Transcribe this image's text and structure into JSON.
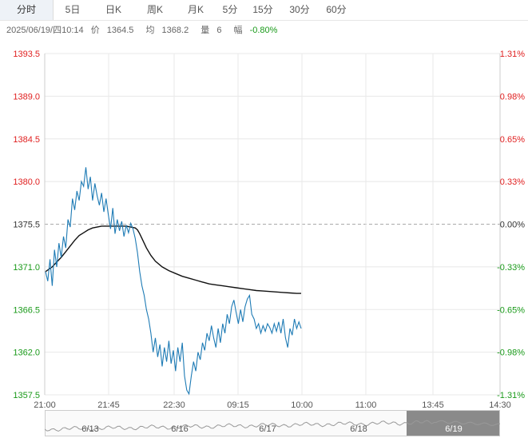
{
  "tabs": [
    {
      "label": "分时",
      "active": true
    },
    {
      "label": "5日",
      "active": false
    },
    {
      "label": "日K",
      "active": false
    },
    {
      "label": "周K",
      "active": false
    },
    {
      "label": "月K",
      "active": false
    },
    {
      "label": "5分",
      "active": false
    },
    {
      "label": "15分",
      "active": false
    },
    {
      "label": "30分",
      "active": false
    },
    {
      "label": "60分",
      "active": false
    }
  ],
  "info": {
    "datetime": "2025/06/19/四10:14",
    "price_label": "价",
    "price": "1364.5",
    "avg_label": "均",
    "avg": "1368.2",
    "vol_label": "量",
    "vol": "6",
    "change_label": "幅",
    "change": "-0.80%"
  },
  "colors": {
    "up": "#e02020",
    "down": "#1a9a1a",
    "neutral": "#333333",
    "price_line": "#1e7bb5",
    "avg_line": "#111111",
    "grid": "#e8e8e8",
    "baseline": "#aaaaaa",
    "highlight": "#8a8a8a"
  },
  "chart_data": {
    "type": "line",
    "base_price": 1375.5,
    "ylim": [
      1357.5,
      1393.5
    ],
    "left_ticks": [
      "1393.5",
      "1389.0",
      "1384.5",
      "1380.0",
      "1375.5",
      "1371.0",
      "1366.5",
      "1362.0",
      "1357.5"
    ],
    "right_ticks": [
      "1.31%",
      "0.98%",
      "0.65%",
      "0.33%",
      "0.00%",
      "-0.33%",
      "-0.65%",
      "-0.98%",
      "-1.31%"
    ],
    "x_ticks": [
      "21:00",
      "21:45",
      "22:30",
      "09:15",
      "10:00",
      "11:00",
      "13:45",
      "14:30"
    ],
    "series": [
      {
        "name": "价",
        "values": [
          1370.5,
          1369.5,
          1371.8,
          1369.0,
          1372.8,
          1371.0,
          1373.5,
          1372.0,
          1374.2,
          1373.0,
          1376.0,
          1375.2,
          1378.2,
          1377.0,
          1379.0,
          1378.0,
          1380.0,
          1379.5,
          1381.5,
          1379.2,
          1380.5,
          1378.0,
          1379.8,
          1378.5,
          1377.5,
          1378.8,
          1376.8,
          1378.2,
          1376.5,
          1375.0,
          1377.2,
          1374.5,
          1376.0,
          1374.8,
          1375.8,
          1374.2,
          1375.4,
          1374.6,
          1375.6,
          1375.0,
          1374.0,
          1372.5,
          1370.5,
          1369.0,
          1368.0,
          1366.5,
          1365.5,
          1364.0,
          1362.0,
          1363.5,
          1361.5,
          1362.8,
          1360.5,
          1362.5,
          1361.0,
          1363.2,
          1360.8,
          1362.2,
          1360.0,
          1362.5,
          1361.0,
          1363.0,
          1359.5,
          1358.0,
          1357.6,
          1359.5,
          1361.0,
          1360.0,
          1362.0,
          1361.2,
          1363.0,
          1362.2,
          1364.0,
          1363.2,
          1364.8,
          1363.5,
          1362.5,
          1364.5,
          1363.0,
          1365.0,
          1364.0,
          1366.0,
          1365.0,
          1366.8,
          1367.5,
          1366.2,
          1365.0,
          1366.5,
          1365.2,
          1366.8,
          1367.6,
          1368.0,
          1366.0,
          1365.5,
          1364.5,
          1365.0,
          1364.0,
          1364.8,
          1364.2,
          1365.0,
          1364.6,
          1364.0,
          1365.0,
          1364.2,
          1365.2,
          1364.0,
          1365.5,
          1363.5,
          1362.5,
          1364.5,
          1363.8,
          1365.5,
          1364.5,
          1365.2,
          1364.5
        ],
        "avg": [
          1370.5,
          1371.0,
          1371.5,
          1372.0,
          1372.6,
          1373.2,
          1373.8,
          1374.3,
          1374.6,
          1374.9,
          1375.1,
          1375.2,
          1375.3,
          1375.3,
          1375.3,
          1375.3,
          1375.3,
          1375.2,
          1375.1,
          1374.9,
          1374.5,
          1374.0,
          1373.0,
          1372.2,
          1371.6,
          1371.0,
          1370.6,
          1370.3,
          1370.0,
          1369.8,
          1369.6,
          1369.4,
          1369.2,
          1369.1,
          1369.0,
          1368.9,
          1368.8,
          1368.7,
          1368.6,
          1368.5,
          1368.45,
          1368.4,
          1368.35,
          1368.3,
          1368.25,
          1368.2,
          1368.2
        ],
        "avg_x": [
          0,
          3,
          5,
          7,
          9,
          11,
          13,
          15,
          17,
          19,
          21,
          23,
          25,
          27,
          30,
          33,
          36,
          38,
          40,
          41,
          42,
          43,
          45,
          47,
          49,
          52,
          55,
          58,
          61,
          64,
          67,
          70,
          73,
          76,
          79,
          82,
          85,
          88,
          91,
          94,
          97,
          100,
          103,
          106,
          109,
          112,
          114
        ]
      }
    ],
    "nav_dates": [
      "6/13",
      "6/16",
      "6/17",
      "6/18",
      "6/19"
    ]
  }
}
